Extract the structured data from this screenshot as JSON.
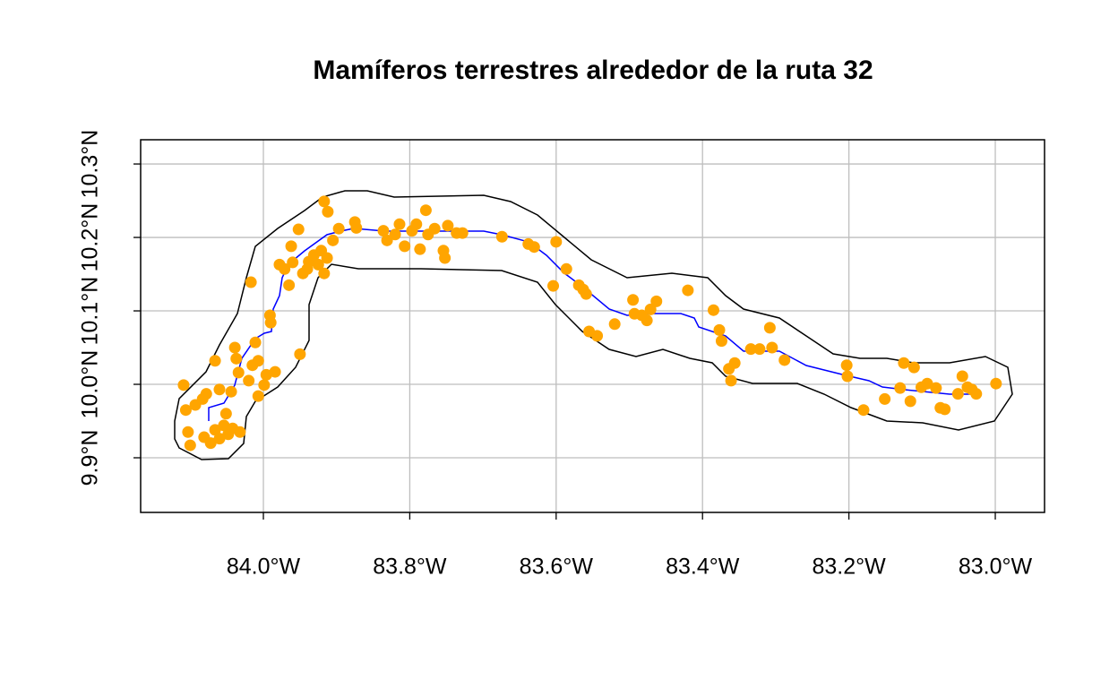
{
  "chart_data": {
    "type": "scatter",
    "title": "Mamíferos terrestres alrededor de la ruta 32",
    "color": "#ffa500",
    "grid": true,
    "xlim": [
      -84.1677,
      -82.9327
    ],
    "ylim": [
      9.8256,
      10.333
    ],
    "xticks": [
      {
        "value": -84.0,
        "label": "84.0°W"
      },
      {
        "value": -83.8,
        "label": "83.8°W"
      },
      {
        "value": -83.6,
        "label": "83.6°W"
      },
      {
        "value": -83.4,
        "label": "83.4°W"
      },
      {
        "value": -83.2,
        "label": "83.2°W"
      },
      {
        "value": -83.0,
        "label": "83.0°W"
      }
    ],
    "yticks": [
      {
        "value": 9.9,
        "label": "9.9°N"
      },
      {
        "value": 10.0,
        "label": "10.0°N"
      },
      {
        "value": 10.1,
        "label": "10.1°N"
      },
      {
        "value": 10.2,
        "label": "10.2°N"
      },
      {
        "value": 10.3,
        "label": "10.3°N"
      }
    ],
    "x": [
      -84.109,
      -84.106,
      -84.103,
      -84.1,
      -84.093,
      -84.083,
      -84.078,
      -84.081,
      -84.072,
      -84.066,
      -84.06,
      -84.054,
      -84.048,
      -84.042,
      -84.032,
      -84.051,
      -84.066,
      -84.06,
      -84.044,
      -84.039,
      -84.037,
      -84.034,
      -84.02,
      -84.015,
      -84.007,
      -84.011,
      -84.007,
      -83.999,
      -83.996,
      -83.984,
      -84.017,
      -83.991,
      -83.99,
      -83.978,
      -83.971,
      -83.965,
      -83.962,
      -83.96,
      -83.952,
      -83.95,
      -83.946,
      -83.94,
      -83.938,
      -83.931,
      -83.925,
      -83.921,
      -83.917,
      -83.913,
      -83.917,
      -83.912,
      -83.905,
      -83.897,
      -83.875,
      -83.873,
      -83.836,
      -83.831,
      -83.82,
      -83.814,
      -83.807,
      -83.797,
      -83.791,
      -83.786,
      -83.778,
      -83.775,
      -83.766,
      -83.754,
      -83.752,
      -83.748,
      -83.736,
      -83.728,
      -83.674,
      -83.638,
      -83.63,
      -83.6,
      -83.604,
      -83.586,
      -83.569,
      -83.563,
      -83.559,
      -83.555,
      -83.544,
      -83.52,
      -83.495,
      -83.493,
      -83.483,
      -83.476,
      -83.471,
      -83.463,
      -83.42,
      -83.385,
      -83.377,
      -83.374,
      -83.364,
      -83.361,
      -83.356,
      -83.334,
      -83.322,
      -83.308,
      -83.305,
      -83.288,
      -83.203,
      -83.202,
      -83.18,
      -83.151,
      -83.13,
      -83.125,
      -83.116,
      -83.111,
      -83.101,
      -83.093,
      -83.081,
      -83.075,
      -83.069,
      -83.051,
      -83.045,
      -83.038,
      -83.032,
      -83.026,
      -82.999
    ],
    "y": [
      9.999,
      9.965,
      9.935,
      9.917,
      9.972,
      9.98,
      9.987,
      9.928,
      9.92,
      9.938,
      9.926,
      9.944,
      9.932,
      9.94,
      9.935,
      9.96,
      10.032,
      9.993,
      9.99,
      10.05,
      10.035,
      10.016,
      10.005,
      10.026,
      10.032,
      10.057,
      9.984,
      9.999,
      10.013,
      10.017,
      10.139,
      10.094,
      10.084,
      10.163,
      10.157,
      10.135,
      10.188,
      10.166,
      10.211,
      10.041,
      10.151,
      10.157,
      10.167,
      10.176,
      10.163,
      10.182,
      10.151,
      10.172,
      10.249,
      10.235,
      10.196,
      10.212,
      10.221,
      10.213,
      10.209,
      10.196,
      10.204,
      10.218,
      10.188,
      10.209,
      10.218,
      10.184,
      10.237,
      10.204,
      10.212,
      10.182,
      10.172,
      10.216,
      10.206,
      10.206,
      10.201,
      10.191,
      10.187,
      10.194,
      10.134,
      10.157,
      10.135,
      10.129,
      10.123,
      10.072,
      10.066,
      10.082,
      10.115,
      10.096,
      10.094,
      10.087,
      10.102,
      10.113,
      10.128,
      10.101,
      10.074,
      10.059,
      10.021,
      10.005,
      10.029,
      10.048,
      10.048,
      10.077,
      10.05,
      10.033,
      10.026,
      10.011,
      9.965,
      9.98,
      9.995,
      10.029,
      9.977,
      10.023,
      9.996,
      10.001,
      9.995,
      9.968,
      9.966,
      9.987,
      10.011,
      9.996,
      9.993,
      9.987,
      10.001
    ]
  }
}
